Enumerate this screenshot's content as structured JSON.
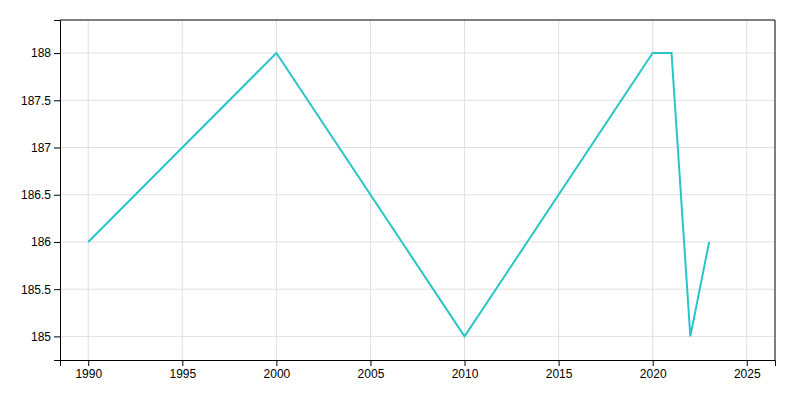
{
  "chart_data": {
    "type": "line",
    "x": [
      1990,
      2000,
      2010,
      2020,
      2021,
      2022,
      2023
    ],
    "values": [
      186,
      188,
      185,
      188,
      188,
      185,
      186
    ],
    "color": "#29c5c8",
    "xlim": [
      1988.5,
      2026.5
    ],
    "ylim": [
      184.75,
      188.35
    ],
    "xticks": [
      1990,
      1995,
      2000,
      2005,
      2010,
      2015,
      2020,
      2025
    ],
    "yticks": [
      185.0,
      185.5,
      186.0,
      186.5,
      187.0,
      187.5,
      188.0
    ],
    "grid": true
  }
}
